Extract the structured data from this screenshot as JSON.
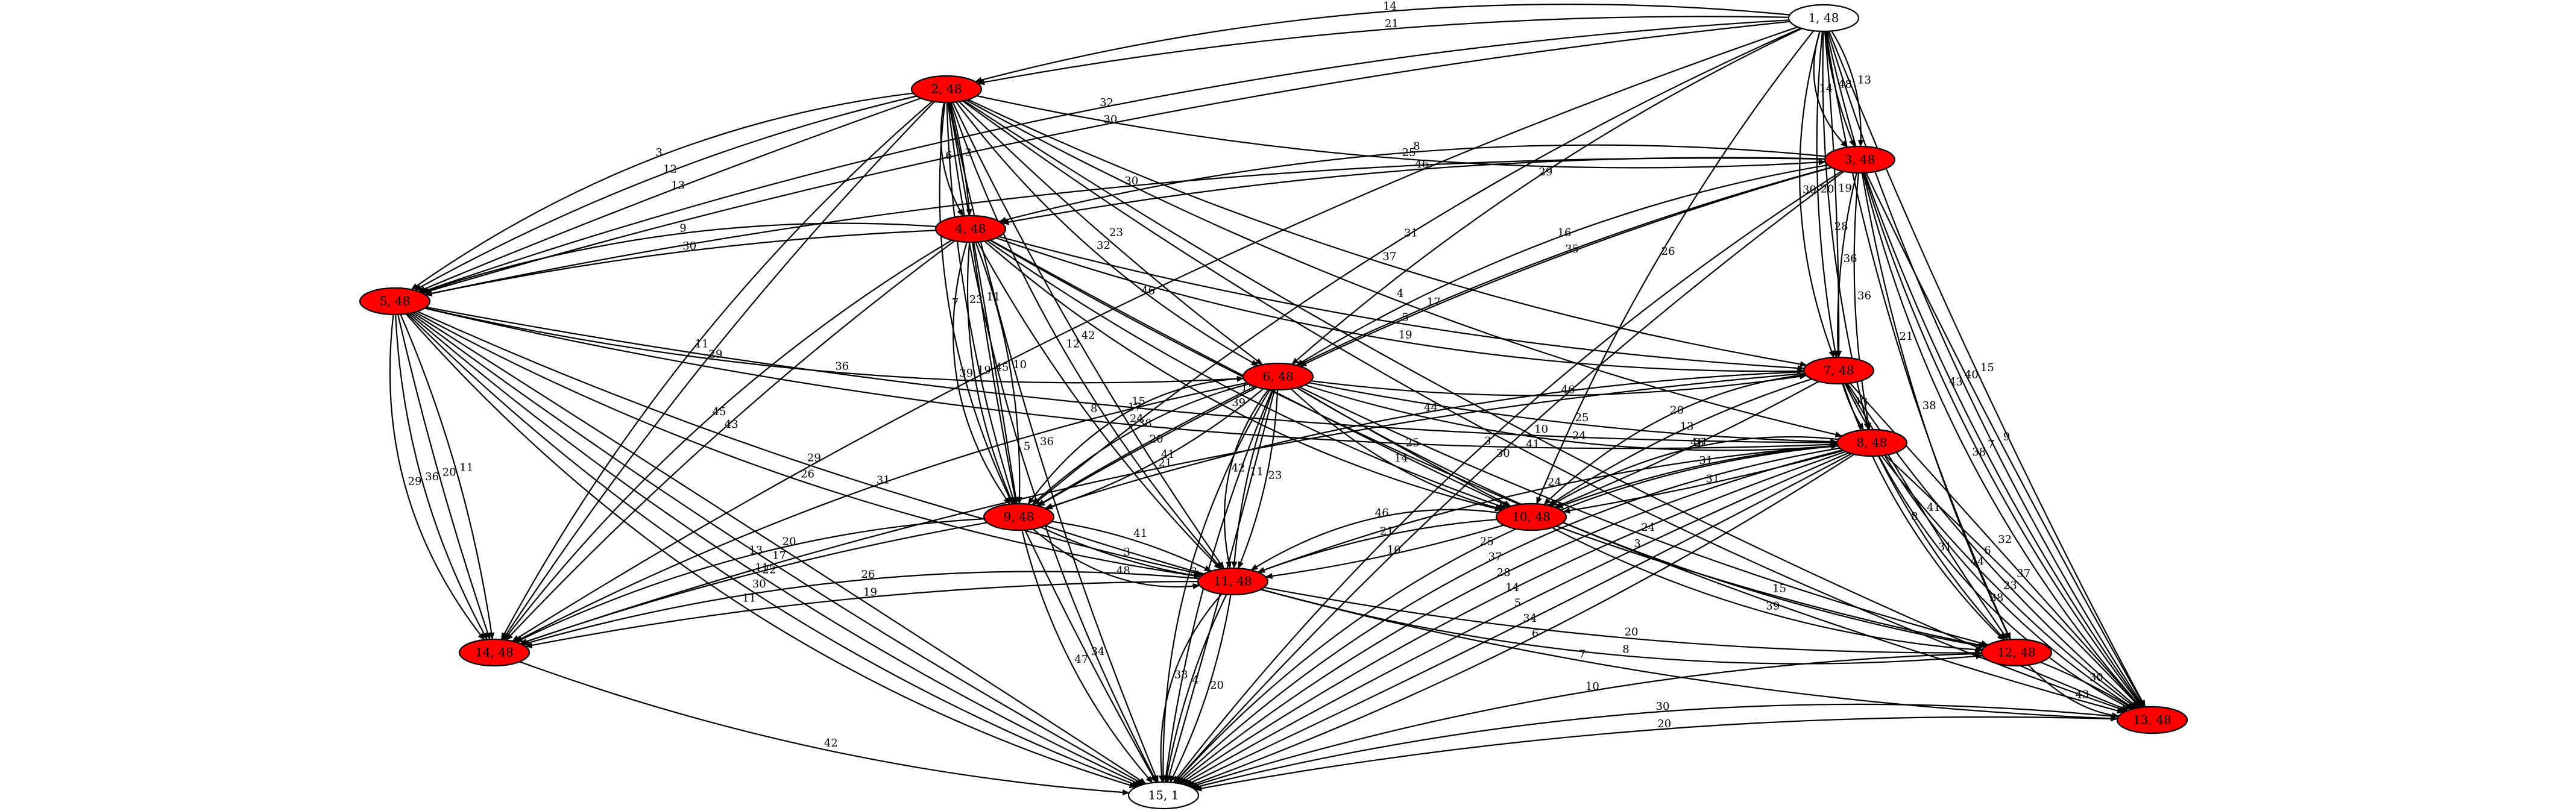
{
  "diagram": {
    "type": "directed-weighted-graph",
    "colors": {
      "highlight": "#ff0000",
      "plain": "#ffffff",
      "stroke": "#000000"
    },
    "nodes": [
      {
        "id": 1,
        "label": "1, 48",
        "highlighted": false
      },
      {
        "id": 2,
        "label": "2, 48",
        "highlighted": true
      },
      {
        "id": 3,
        "label": "3, 48",
        "highlighted": true
      },
      {
        "id": 4,
        "label": "4, 48",
        "highlighted": true
      },
      {
        "id": 5,
        "label": "5, 48",
        "highlighted": true
      },
      {
        "id": 6,
        "label": "6, 48",
        "highlighted": true
      },
      {
        "id": 7,
        "label": "7, 48",
        "highlighted": true
      },
      {
        "id": 8,
        "label": "8, 48",
        "highlighted": true
      },
      {
        "id": 9,
        "label": "9, 48",
        "highlighted": true
      },
      {
        "id": 10,
        "label": "10, 48",
        "highlighted": true
      },
      {
        "id": 11,
        "label": "11, 48",
        "highlighted": true
      },
      {
        "id": 12,
        "label": "12, 48",
        "highlighted": true
      },
      {
        "id": 13,
        "label": "13, 48",
        "highlighted": true
      },
      {
        "id": 14,
        "label": "14, 48",
        "highlighted": true
      },
      {
        "id": 15,
        "label": "15, 1",
        "highlighted": false
      }
    ],
    "edges": [
      {
        "from": 1,
        "to": 2,
        "label": "21"
      },
      {
        "from": 1,
        "to": 2,
        "label": "14"
      },
      {
        "from": 1,
        "to": 3,
        "label": "13"
      },
      {
        "from": 1,
        "to": 3,
        "label": "48"
      },
      {
        "from": 1,
        "to": 3,
        "label": "14"
      },
      {
        "from": 1,
        "to": 5,
        "label": "30"
      },
      {
        "from": 1,
        "to": 5,
        "label": "32"
      },
      {
        "from": 1,
        "to": 6,
        "label": "29"
      },
      {
        "from": 1,
        "to": 7,
        "label": "19"
      },
      {
        "from": 1,
        "to": 7,
        "label": "20"
      },
      {
        "from": 1,
        "to": 7,
        "label": "30"
      },
      {
        "from": 1,
        "to": 8,
        "label": "28"
      },
      {
        "from": 1,
        "to": 9,
        "label": "31"
      },
      {
        "from": 1,
        "to": 10,
        "label": "26"
      },
      {
        "from": 1,
        "to": 12,
        "label": "21"
      },
      {
        "from": 1,
        "to": 13,
        "label": "15"
      },
      {
        "from": 1,
        "to": 13,
        "label": "40"
      },
      {
        "from": 1,
        "to": 13,
        "label": "43"
      },
      {
        "from": 1,
        "to": 14,
        "label": "46"
      },
      {
        "from": 2,
        "to": 3,
        "label": "25"
      },
      {
        "from": 2,
        "to": 4,
        "label": "3"
      },
      {
        "from": 2,
        "to": 4,
        "label": "6"
      },
      {
        "from": 2,
        "to": 5,
        "label": "13"
      },
      {
        "from": 2,
        "to": 5,
        "label": "12"
      },
      {
        "from": 2,
        "to": 5,
        "label": "3"
      },
      {
        "from": 2,
        "to": 6,
        "label": "23"
      },
      {
        "from": 2,
        "to": 6,
        "label": "32"
      },
      {
        "from": 2,
        "to": 7,
        "label": "37"
      },
      {
        "from": 2,
        "to": 8,
        "label": "4"
      },
      {
        "from": 2,
        "to": 9,
        "label": "11"
      },
      {
        "from": 2,
        "to": 9,
        "label": "23"
      },
      {
        "from": 2,
        "to": 9,
        "label": "7"
      },
      {
        "from": 2,
        "to": 11,
        "label": "42"
      },
      {
        "from": 2,
        "to": 11,
        "label": "12"
      },
      {
        "from": 2,
        "to": 13,
        "label": "10"
      },
      {
        "from": 2,
        "to": 13,
        "label": "41"
      },
      {
        "from": 2,
        "to": 14,
        "label": "29"
      },
      {
        "from": 2,
        "to": 14,
        "label": "11"
      },
      {
        "from": 2,
        "to": 15,
        "label": "36"
      },
      {
        "from": 2,
        "to": 15,
        "label": "5"
      },
      {
        "from": 3,
        "to": 4,
        "label": "46"
      },
      {
        "from": 3,
        "to": 4,
        "label": "8"
      },
      {
        "from": 3,
        "to": 5,
        "label": "30"
      },
      {
        "from": 3,
        "to": 6,
        "label": "35"
      },
      {
        "from": 3,
        "to": 6,
        "label": "16"
      },
      {
        "from": 3,
        "to": 7,
        "label": "36"
      },
      {
        "from": 3,
        "to": 8,
        "label": "36"
      },
      {
        "from": 3,
        "to": 9,
        "label": "17"
      },
      {
        "from": 3,
        "to": 12,
        "label": "38"
      },
      {
        "from": 3,
        "to": 13,
        "label": "9"
      },
      {
        "from": 3,
        "to": 13,
        "label": "7"
      },
      {
        "from": 3,
        "to": 13,
        "label": "38"
      },
      {
        "from": 3,
        "to": 15,
        "label": "30"
      },
      {
        "from": 3,
        "to": 15,
        "label": "3"
      },
      {
        "from": 4,
        "to": 5,
        "label": "30"
      },
      {
        "from": 4,
        "to": 5,
        "label": "9"
      },
      {
        "from": 4,
        "to": 7,
        "label": "5"
      },
      {
        "from": 4,
        "to": 7,
        "label": "19"
      },
      {
        "from": 4,
        "to": 9,
        "label": "10"
      },
      {
        "from": 4,
        "to": 9,
        "label": "45"
      },
      {
        "from": 4,
        "to": 9,
        "label": "19"
      },
      {
        "from": 4,
        "to": 9,
        "label": "39"
      },
      {
        "from": 4,
        "to": 10,
        "label": "10"
      },
      {
        "from": 4,
        "to": 10,
        "label": "15"
      },
      {
        "from": 4,
        "to": 10,
        "label": "39"
      },
      {
        "from": 4,
        "to": 11,
        "label": "8"
      },
      {
        "from": 4,
        "to": 13,
        "label": "15"
      },
      {
        "from": 4,
        "to": 14,
        "label": "43"
      },
      {
        "from": 4,
        "to": 14,
        "label": "45"
      },
      {
        "from": 5,
        "to": 6,
        "label": "36"
      },
      {
        "from": 5,
        "to": 8,
        "label": "15"
      },
      {
        "from": 5,
        "to": 8,
        "label": "24"
      },
      {
        "from": 5,
        "to": 11,
        "label": "29"
      },
      {
        "from": 5,
        "to": 11,
        "label": "26"
      },
      {
        "from": 5,
        "to": 14,
        "label": "11"
      },
      {
        "from": 5,
        "to": 14,
        "label": "20"
      },
      {
        "from": 5,
        "to": 14,
        "label": "36"
      },
      {
        "from": 5,
        "to": 14,
        "label": "29"
      },
      {
        "from": 5,
        "to": 15,
        "label": "20"
      },
      {
        "from": 5,
        "to": 15,
        "label": "17"
      },
      {
        "from": 5,
        "to": 15,
        "label": "22"
      },
      {
        "from": 5,
        "to": 15,
        "label": "30"
      },
      {
        "from": 5,
        "to": 15,
        "label": "11"
      },
      {
        "from": 6,
        "to": 7,
        "label": "46"
      },
      {
        "from": 6,
        "to": 8,
        "label": "25"
      },
      {
        "from": 6,
        "to": 8,
        "label": "24"
      },
      {
        "from": 6,
        "to": 9,
        "label": "41"
      },
      {
        "from": 6,
        "to": 9,
        "label": "20"
      },
      {
        "from": 6,
        "to": 9,
        "label": "38"
      },
      {
        "from": 6,
        "to": 9,
        "label": "17"
      },
      {
        "from": 6,
        "to": 10,
        "label": "25"
      },
      {
        "from": 6,
        "to": 10,
        "label": "14"
      },
      {
        "from": 6,
        "to": 11,
        "label": "23"
      },
      {
        "from": 6,
        "to": 11,
        "label": "11"
      },
      {
        "from": 6,
        "to": 11,
        "label": "42"
      },
      {
        "from": 6,
        "to": 12,
        "label": "24"
      },
      {
        "from": 6,
        "to": 12,
        "label": "3"
      },
      {
        "from": 6,
        "to": 14,
        "label": "31"
      },
      {
        "from": 6,
        "to": 15,
        "label": "43"
      },
      {
        "from": 6,
        "to": 15,
        "label": "4"
      },
      {
        "from": 6,
        "to": 15,
        "label": "3"
      },
      {
        "from": 7,
        "to": 8,
        "label": "43"
      },
      {
        "from": 7,
        "to": 9,
        "label": "44"
      },
      {
        "from": 7,
        "to": 10,
        "label": "46"
      },
      {
        "from": 7,
        "to": 10,
        "label": "13"
      },
      {
        "from": 7,
        "to": 10,
        "label": "20"
      },
      {
        "from": 7,
        "to": 12,
        "label": "41"
      },
      {
        "from": 7,
        "to": 12,
        "label": "8"
      },
      {
        "from": 7,
        "to": 13,
        "label": "32"
      },
      {
        "from": 7,
        "to": 13,
        "label": "6"
      },
      {
        "from": 7,
        "to": 13,
        "label": "44"
      },
      {
        "from": 7,
        "to": 14,
        "label": "21"
      },
      {
        "from": 8,
        "to": 10,
        "label": "31"
      },
      {
        "from": 8,
        "to": 10,
        "label": "31"
      },
      {
        "from": 8,
        "to": 10,
        "label": "31"
      },
      {
        "from": 8,
        "to": 11,
        "label": "24"
      },
      {
        "from": 8,
        "to": 12,
        "label": "31"
      },
      {
        "from": 8,
        "to": 13,
        "label": "37"
      },
      {
        "from": 8,
        "to": 13,
        "label": "23"
      },
      {
        "from": 8,
        "to": 13,
        "label": "38"
      },
      {
        "from": 8,
        "to": 15,
        "label": "6"
      },
      {
        "from": 8,
        "to": 15,
        "label": "34"
      },
      {
        "from": 8,
        "to": 15,
        "label": "5"
      },
      {
        "from": 8,
        "to": 15,
        "label": "14"
      },
      {
        "from": 8,
        "to": 15,
        "label": "28"
      },
      {
        "from": 8,
        "to": 15,
        "label": "37"
      },
      {
        "from": 8,
        "to": 15,
        "label": "25"
      },
      {
        "from": 9,
        "to": 11,
        "label": "41"
      },
      {
        "from": 9,
        "to": 11,
        "label": "3"
      },
      {
        "from": 9,
        "to": 11,
        "label": "48"
      },
      {
        "from": 9,
        "to": 13,
        "label": "7"
      },
      {
        "from": 9,
        "to": 14,
        "label": "11"
      },
      {
        "from": 9,
        "to": 14,
        "label": "13"
      },
      {
        "from": 9,
        "to": 15,
        "label": "34"
      },
      {
        "from": 9,
        "to": 15,
        "label": "47"
      },
      {
        "from": 10,
        "to": 11,
        "label": "10"
      },
      {
        "from": 10,
        "to": 11,
        "label": "21"
      },
      {
        "from": 10,
        "to": 11,
        "label": "46"
      },
      {
        "from": 10,
        "to": 12,
        "label": "15"
      },
      {
        "from": 10,
        "to": 12,
        "label": "39"
      },
      {
        "from": 11,
        "to": 12,
        "label": "20"
      },
      {
        "from": 11,
        "to": 12,
        "label": "8"
      },
      {
        "from": 11,
        "to": 14,
        "label": "19"
      },
      {
        "from": 11,
        "to": 14,
        "label": "26"
      },
      {
        "from": 11,
        "to": 15,
        "label": "20"
      },
      {
        "from": 11,
        "to": 15,
        "label": "4"
      },
      {
        "from": 11,
        "to": 15,
        "label": "33"
      },
      {
        "from": 12,
        "to": 13,
        "label": "30"
      },
      {
        "from": 12,
        "to": 13,
        "label": "43"
      },
      {
        "from": 12,
        "to": 15,
        "label": "10"
      },
      {
        "from": 13,
        "to": 15,
        "label": "20"
      },
      {
        "from": 13,
        "to": 15,
        "label": "30"
      },
      {
        "from": 14,
        "to": 15,
        "label": "42"
      }
    ]
  }
}
